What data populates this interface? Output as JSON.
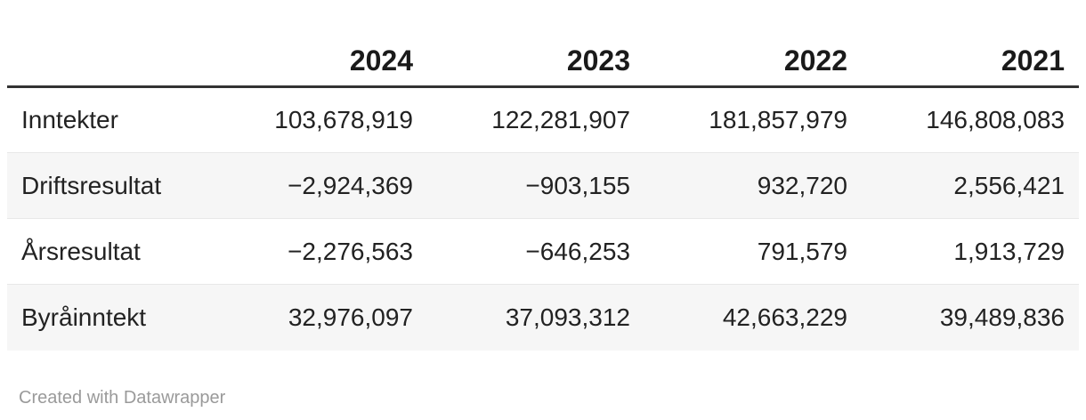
{
  "table": {
    "columns": [
      "2024",
      "2023",
      "2022",
      "2021"
    ],
    "rows": [
      {
        "label": "Inntekter",
        "values": [
          "103,678,919",
          "122,281,907",
          "181,857,979",
          "146,808,083"
        ]
      },
      {
        "label": "Driftsresultat",
        "values": [
          "−2,924,369",
          "−903,155",
          "932,720",
          "2,556,421"
        ]
      },
      {
        "label": "Årsresultat",
        "values": [
          "−2,276,563",
          "−646,253",
          "791,579",
          "1,913,729"
        ]
      },
      {
        "label": "Byråinntekt",
        "values": [
          "32,976,097",
          "37,093,312",
          "42,663,229",
          "39,489,836"
        ]
      }
    ]
  },
  "footer": {
    "attribution": "Created with Datawrapper"
  },
  "colors": {
    "header_border": "#333333",
    "row_divider": "#e8e8e8",
    "stripe_background": "#f6f6f6",
    "body_text": "#222222",
    "footer_text": "#9a9a9a"
  },
  "chart_data": {
    "type": "table",
    "title": "",
    "columns": [
      "",
      "2024",
      "2023",
      "2022",
      "2021"
    ],
    "rows": [
      [
        "Inntekter",
        103678919,
        122281907,
        181857979,
        146808083
      ],
      [
        "Driftsresultat",
        -2924369,
        -903155,
        932720,
        2556421
      ],
      [
        "Årsresultat",
        -2276563,
        -646253,
        791579,
        1913729
      ],
      [
        "Byråinntekt",
        32976097,
        37093312,
        42663229,
        39489836
      ]
    ],
    "layout_hints": {
      "striped_rows": true,
      "numeric_alignment": "right",
      "header_rule": "thick-dark",
      "attribution": "Created with Datawrapper"
    }
  }
}
